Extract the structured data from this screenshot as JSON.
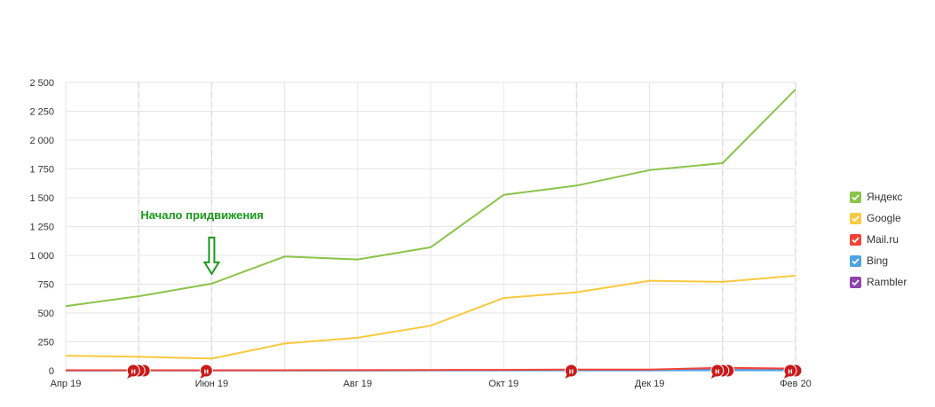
{
  "chart_data": {
    "type": "line",
    "x_ticks": [
      "Апр 19",
      "Июн 19",
      "Авг 19",
      "Окт 19",
      "Дек 19",
      "Фев 20"
    ],
    "y_ticks": [
      "0",
      "250",
      "500",
      "750",
      "1 000",
      "1 250",
      "1 500",
      "1 750",
      "2 000",
      "2 250",
      "2 500"
    ],
    "ylim": [
      0,
      2500
    ],
    "grid": true,
    "legend_position": "right",
    "x": [
      "2019-04",
      "2019-05",
      "2019-06",
      "2019-07",
      "2019-08",
      "2019-09",
      "2019-10",
      "2019-11",
      "2019-12",
      "2020-01",
      "2020-02"
    ],
    "series": [
      {
        "name": "Яндекс",
        "color": "#8bc34a",
        "values": [
          560,
          645,
          755,
          990,
          965,
          1070,
          1525,
          1605,
          1740,
          1800,
          2440
        ]
      },
      {
        "name": "Google",
        "color": "#f9c93f",
        "values": [
          130,
          120,
          105,
          235,
          285,
          390,
          630,
          680,
          780,
          770,
          825
        ]
      },
      {
        "name": "Mail.ru",
        "color": "#f44336",
        "values": [
          4,
          4,
          3,
          4,
          5,
          6,
          7,
          10,
          10,
          25,
          18
        ]
      },
      {
        "name": "Bing",
        "color": "#4ba3e3",
        "values": [
          1,
          1,
          1,
          1,
          1,
          2,
          2,
          2,
          2,
          3,
          3
        ]
      },
      {
        "name": "Rambler",
        "color": "#8e44ad",
        "values": [
          2,
          2,
          2,
          3,
          3,
          4,
          5,
          6,
          6,
          7,
          6
        ]
      }
    ],
    "annotations": [
      {
        "text": "Начало придвижения",
        "x": "2019-06",
        "y": 755
      }
    ],
    "markers": [
      {
        "x": "2019-05",
        "label": "н",
        "count": 3
      },
      {
        "x": "2019-06",
        "label": "н",
        "count": 1
      },
      {
        "x": "2019-11",
        "label": "н",
        "count": 1
      },
      {
        "x": "2020-01",
        "label": "н",
        "count": 3
      },
      {
        "x": "2020-02",
        "label": "н",
        "count": 2
      }
    ]
  },
  "legend": [
    {
      "label": "Яндекс",
      "color": "#8bc34a"
    },
    {
      "label": "Google",
      "color": "#f9c93f"
    },
    {
      "label": "Mail.ru",
      "color": "#f44336"
    },
    {
      "label": "Bing",
      "color": "#4ba3e3"
    },
    {
      "label": "Rambler",
      "color": "#8e44ad"
    }
  ],
  "icons": {
    "legend_check": "checkmark-icon",
    "marker": "note-marker-icon",
    "annotation_arrow": "down-arrow-icon"
  },
  "colors": {
    "grid": "#e6e6e6",
    "marker": "#c91a1a",
    "annotation": "#1a9a1a"
  }
}
